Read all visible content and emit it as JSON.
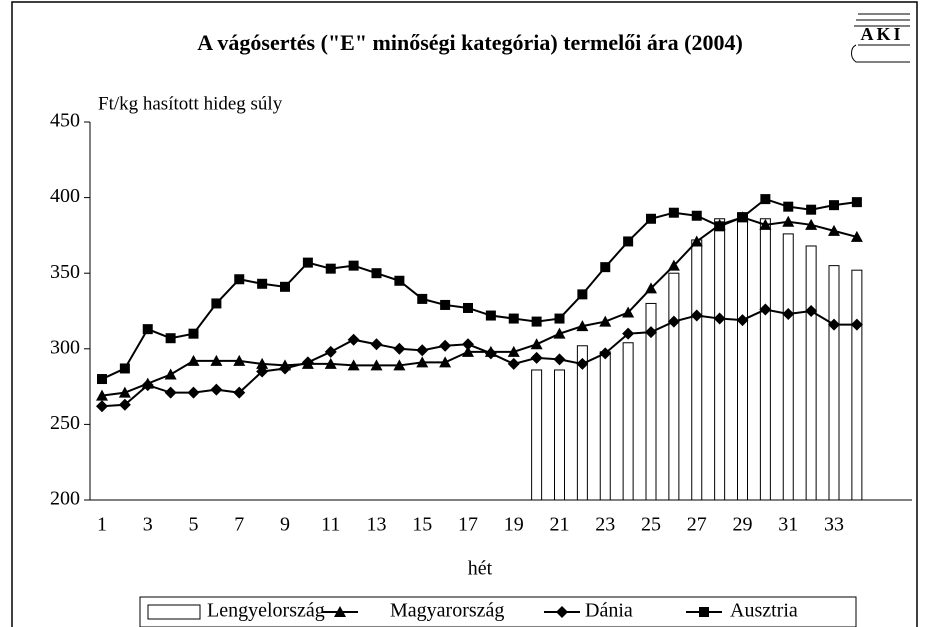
{
  "logo": "AKI",
  "chart_data": {
    "type": "combo",
    "title": "A vágósertés (\"E\" minőségi kategória) termelői ára (2004)",
    "y_axis_label": "Ft/kg hasított hideg súly",
    "x_axis_label": "hét",
    "categories": [
      1,
      null,
      3,
      null,
      5,
      null,
      7,
      null,
      9,
      null,
      11,
      null,
      13,
      null,
      15,
      null,
      17,
      null,
      19,
      null,
      21,
      null,
      23,
      null,
      25,
      null,
      27,
      null,
      29,
      null,
      31,
      null,
      33,
      null
    ],
    "ylim": [
      200,
      450
    ],
    "yticks": [
      200,
      250,
      300,
      350,
      400,
      450
    ],
    "series": [
      {
        "name": "Lengyelország",
        "type": "bar",
        "color": "#ffffff",
        "values": [
          null,
          null,
          null,
          null,
          null,
          null,
          null,
          null,
          null,
          null,
          null,
          null,
          null,
          null,
          null,
          null,
          null,
          null,
          null,
          286,
          286,
          302,
          298,
          304,
          330,
          350,
          372,
          386,
          390,
          386,
          376,
          368,
          355,
          352
        ]
      },
      {
        "name": "Magyarország",
        "type": "line",
        "marker": "triangle",
        "color": "#000000",
        "values": [
          269,
          271,
          277,
          283,
          292,
          292,
          292,
          290,
          289,
          290,
          290,
          289,
          289,
          289,
          291,
          291,
          298,
          298,
          298,
          303,
          310,
          315,
          318,
          324,
          340,
          355,
          371,
          382,
          387,
          382,
          384,
          382,
          378,
          374
        ]
      },
      {
        "name": "Dánia",
        "type": "line",
        "marker": "diamond",
        "color": "#000000",
        "values": [
          262,
          263,
          276,
          271,
          271,
          273,
          271,
          285,
          287,
          291,
          298,
          306,
          303,
          300,
          299,
          302,
          303,
          297,
          290,
          294,
          293,
          290,
          297,
          310,
          311,
          318,
          322,
          320,
          319,
          326,
          323,
          325,
          316,
          316
        ]
      },
      {
        "name": "Ausztria",
        "type": "line",
        "marker": "square",
        "color": "#000000",
        "values": [
          280,
          287,
          313,
          307,
          310,
          330,
          346,
          343,
          341,
          357,
          353,
          355,
          350,
          345,
          333,
          329,
          327,
          322,
          320,
          318,
          320,
          336,
          354,
          371,
          386,
          390,
          388,
          381,
          387,
          399,
          394,
          392,
          395,
          397
        ]
      }
    ]
  }
}
